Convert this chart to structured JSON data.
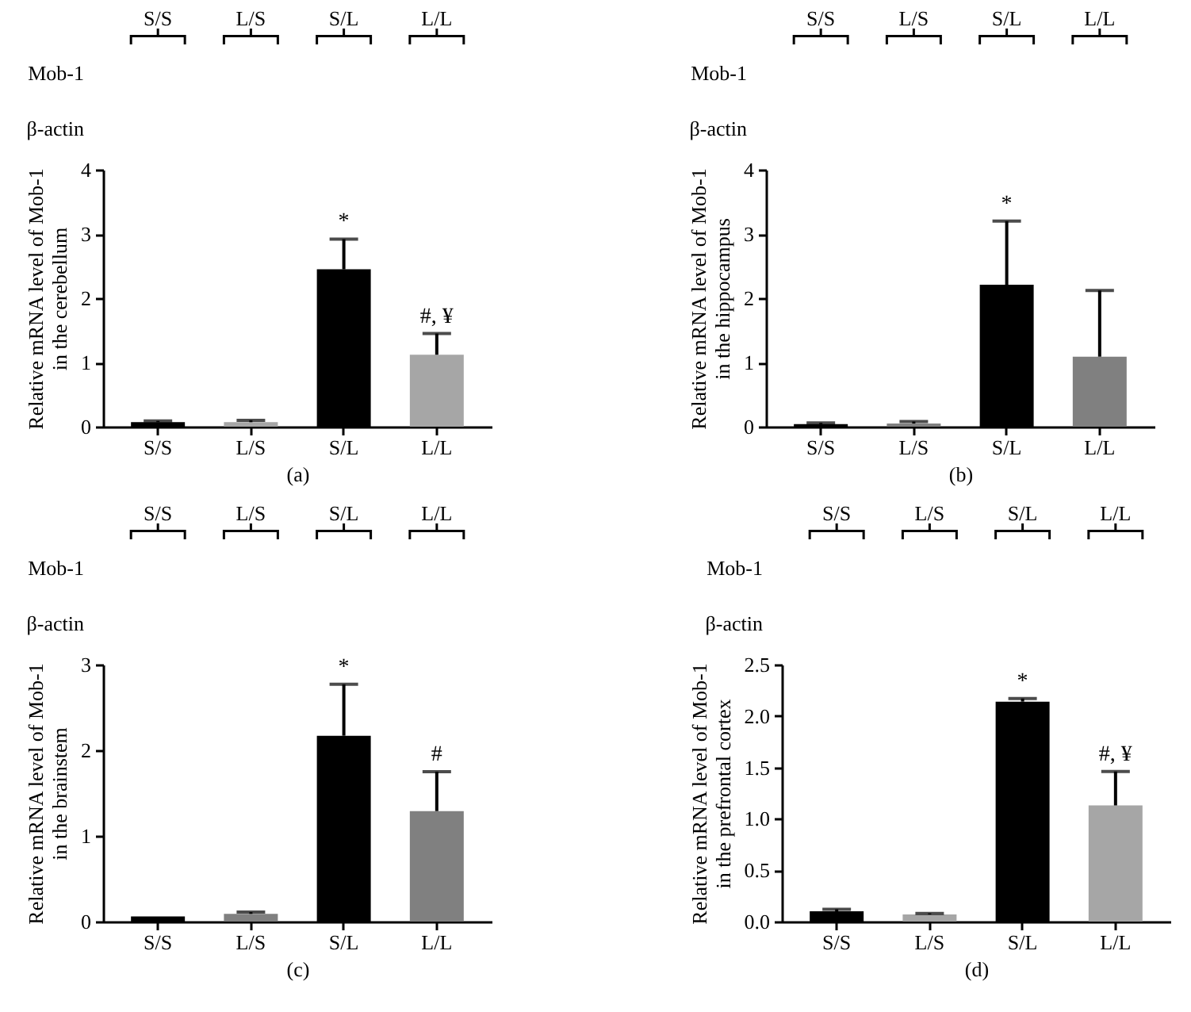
{
  "chart_data": [
    {
      "type": "bar",
      "categories": [
        "S/S",
        "L/S",
        "S/L",
        "L/L"
      ],
      "values": [
        0.07,
        0.07,
        2.45,
        1.12
      ],
      "colors": [
        "#000000",
        "#a6a6a6",
        "#000000",
        "#a6a6a6"
      ],
      "errors": [
        [
          0.07,
          0.09
        ],
        [
          0.07,
          0.1
        ],
        [
          2.45,
          2.92
        ],
        [
          1.12,
          1.45
        ]
      ],
      "ylim": [
        0,
        4
      ],
      "yticks": [
        0,
        1,
        2,
        3,
        4
      ],
      "ylabel": "Relative mRNA level of Mob-1\nin the cerebellum",
      "xlabel": "(a)",
      "annotations": [
        "Mob-1",
        "β-actin",
        {
          "text": "*",
          "x": "S/L",
          "y": 2.92
        },
        {
          "text": "#, ¥",
          "x": "L/L",
          "y": 1.45
        }
      ]
    },
    {
      "type": "bar",
      "categories": [
        "S/S",
        "L/S",
        "S/L",
        "L/L"
      ],
      "values": [
        0.04,
        0.05,
        2.21,
        1.09
      ],
      "colors": [
        "#000000",
        "#808080",
        "#000000",
        "#808080"
      ],
      "errors": [
        [
          0.04,
          0.06
        ],
        [
          0.05,
          0.08
        ],
        [
          2.21,
          3.2
        ],
        [
          1.09,
          2.12
        ]
      ],
      "ylim": [
        0,
        4
      ],
      "yticks": [
        0,
        1,
        2,
        3,
        4
      ],
      "ylabel": "Relative mRNA level of Mob-1\nin the hippocampus",
      "xlabel": "(b)",
      "annotations": [
        "Mob-1",
        "β-actin",
        {
          "text": "*",
          "x": "S/L",
          "y": 3.2
        }
      ]
    },
    {
      "type": "bar",
      "categories": [
        "S/S",
        "L/S",
        "S/L",
        "L/L"
      ],
      "values": [
        0.06,
        0.09,
        2.17,
        1.29
      ],
      "colors": [
        "#000000",
        "#808080",
        "#000000",
        "#808080"
      ],
      "errors": [
        null,
        [
          0.09,
          0.11
        ],
        [
          2.17,
          2.77
        ],
        [
          1.29,
          1.75
        ]
      ],
      "ylim": [
        0,
        3
      ],
      "yticks": [
        0,
        1,
        2,
        3
      ],
      "ylabel": "Relative mRNA level of Mob-1\nin the brainstem",
      "xlabel": "(c)",
      "annotations": [
        "Mob-1",
        "β-actin",
        {
          "text": "*",
          "x": "S/L",
          "y": 2.77
        },
        {
          "text": "#",
          "x": "L/L",
          "y": 1.75
        }
      ]
    },
    {
      "type": "bar",
      "categories": [
        "S/S",
        "L/S",
        "S/L",
        "L/L"
      ],
      "values": [
        0.1,
        0.07,
        2.14,
        1.13
      ],
      "colors": [
        "#000000",
        "#a6a6a6",
        "#000000",
        "#a6a6a6"
      ],
      "errors": [
        [
          0.1,
          0.12
        ],
        [
          0.07,
          0.08
        ],
        [
          2.14,
          2.17
        ],
        [
          1.13,
          1.46
        ]
      ],
      "ylim": [
        0,
        2.5
      ],
      "yticks": [
        {
          "value": 0,
          "label": "0.0"
        },
        0.5,
        {
          "value": 1,
          "label": "1.0"
        },
        1.5,
        {
          "value": 2,
          "label": "2.0"
        },
        2.5
      ],
      "ylabel": "Relative mRNA level of Mob-1\nin the prefrontal cortex",
      "xlabel": "(d)",
      "annotations": [
        "Mob-1",
        "β-actin",
        {
          "text": "*",
          "x": "S/L",
          "y": 2.17
        },
        {
          "text": "#, ¥",
          "x": "L/L",
          "y": 1.46
        }
      ]
    }
  ]
}
